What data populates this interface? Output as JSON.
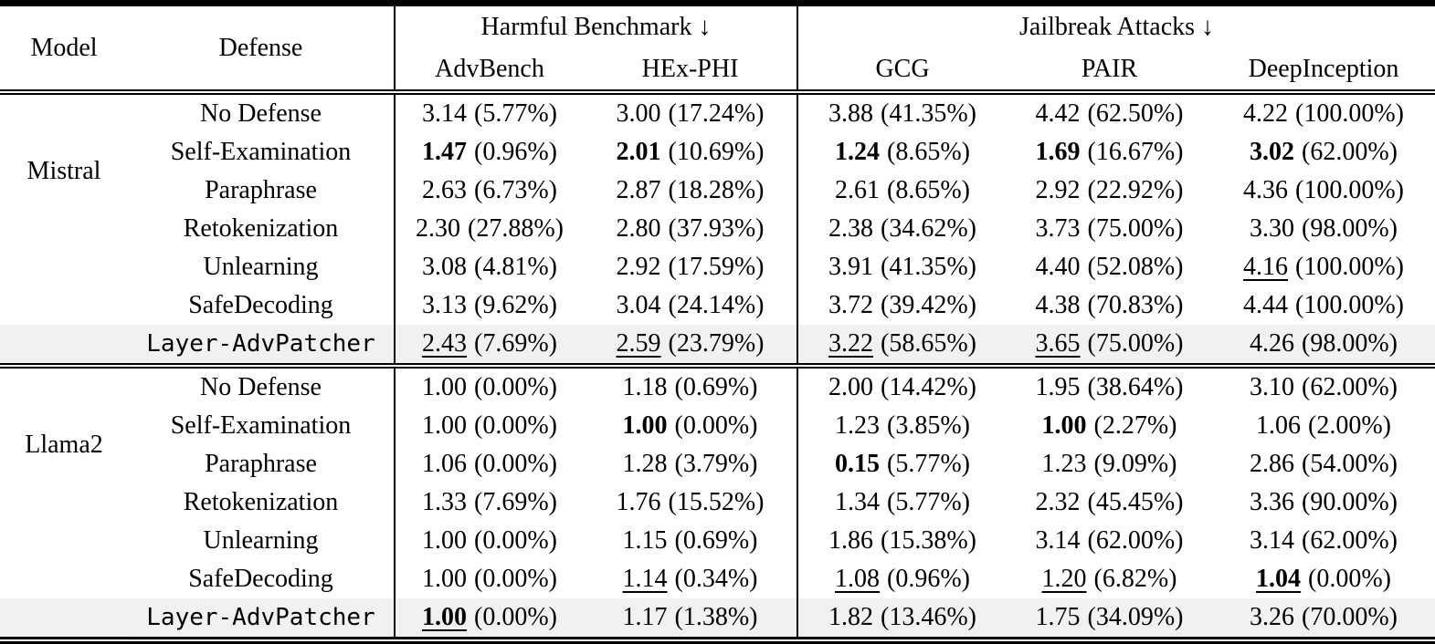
{
  "table": {
    "header": {
      "model": "Model",
      "defense": "Defense",
      "harmful_group": "Harmful Benchmark ↓",
      "jailbreak_group": "Jailbreak Attacks ↓",
      "subcolumns": [
        "AdvBench",
        "HEx-PHI",
        "GCG",
        "PAIR",
        "DeepInception"
      ]
    },
    "colors": {
      "highlight_row": "#f1f1f1",
      "rule": "#000000",
      "text": "#000000"
    },
    "groups": [
      {
        "model": "Mistral",
        "rows": [
          {
            "defense": "No Defense",
            "mono": false,
            "highlight": false,
            "cells": [
              {
                "score": "3.14",
                "pct": "(5.77%)",
                "em": ""
              },
              {
                "score": "3.00",
                "pct": "(17.24%)",
                "em": ""
              },
              {
                "score": "3.88",
                "pct": "(41.35%)",
                "em": ""
              },
              {
                "score": "4.42",
                "pct": "(62.50%)",
                "em": ""
              },
              {
                "score": "4.22",
                "pct": "(100.00%)",
                "em": ""
              }
            ]
          },
          {
            "defense": "Self-Examination",
            "mono": false,
            "highlight": false,
            "cells": [
              {
                "score": "1.47",
                "pct": "(0.96%)",
                "em": "b"
              },
              {
                "score": "2.01",
                "pct": "(10.69%)",
                "em": "b"
              },
              {
                "score": "1.24",
                "pct": "(8.65%)",
                "em": "b"
              },
              {
                "score": "1.69",
                "pct": "(16.67%)",
                "em": "b"
              },
              {
                "score": "3.02",
                "pct": "(62.00%)",
                "em": "b"
              }
            ]
          },
          {
            "defense": "Paraphrase",
            "mono": false,
            "highlight": false,
            "cells": [
              {
                "score": "2.63",
                "pct": "(6.73%)",
                "em": ""
              },
              {
                "score": "2.87",
                "pct": "(18.28%)",
                "em": ""
              },
              {
                "score": "2.61",
                "pct": "(8.65%)",
                "em": ""
              },
              {
                "score": "2.92",
                "pct": "(22.92%)",
                "em": ""
              },
              {
                "score": "4.36",
                "pct": "(100.00%)",
                "em": ""
              }
            ]
          },
          {
            "defense": "Retokenization",
            "mono": false,
            "highlight": false,
            "cells": [
              {
                "score": "2.30",
                "pct": "(27.88%)",
                "em": ""
              },
              {
                "score": "2.80",
                "pct": "(37.93%)",
                "em": ""
              },
              {
                "score": "2.38",
                "pct": "(34.62%)",
                "em": ""
              },
              {
                "score": "3.73",
                "pct": "(75.00%)",
                "em": ""
              },
              {
                "score": "3.30",
                "pct": "(98.00%)",
                "em": ""
              }
            ]
          },
          {
            "defense": "Unlearning",
            "mono": false,
            "highlight": false,
            "cells": [
              {
                "score": "3.08",
                "pct": "(4.81%)",
                "em": ""
              },
              {
                "score": "2.92",
                "pct": "(17.59%)",
                "em": ""
              },
              {
                "score": "3.91",
                "pct": "(41.35%)",
                "em": ""
              },
              {
                "score": "4.40",
                "pct": "(52.08%)",
                "em": ""
              },
              {
                "score": "4.16",
                "pct": "(100.00%)",
                "em": "u"
              }
            ]
          },
          {
            "defense": "SafeDecoding",
            "mono": false,
            "highlight": false,
            "cells": [
              {
                "score": "3.13",
                "pct": "(9.62%)",
                "em": ""
              },
              {
                "score": "3.04",
                "pct": "(24.14%)",
                "em": ""
              },
              {
                "score": "3.72",
                "pct": "(39.42%)",
                "em": ""
              },
              {
                "score": "4.38",
                "pct": "(70.83%)",
                "em": ""
              },
              {
                "score": "4.44",
                "pct": "(100.00%)",
                "em": ""
              }
            ]
          },
          {
            "defense": "Layer-AdvPatcher",
            "mono": true,
            "highlight": true,
            "cells": [
              {
                "score": "2.43",
                "pct": "(7.69%)",
                "em": "u"
              },
              {
                "score": "2.59",
                "pct": "(23.79%)",
                "em": "u"
              },
              {
                "score": "3.22",
                "pct": "(58.65%)",
                "em": "u"
              },
              {
                "score": "3.65",
                "pct": "(75.00%)",
                "em": "u"
              },
              {
                "score": "4.26",
                "pct": "(98.00%)",
                "em": ""
              }
            ]
          }
        ]
      },
      {
        "model": "Llama2",
        "rows": [
          {
            "defense": "No Defense",
            "mono": false,
            "highlight": false,
            "cells": [
              {
                "score": "1.00",
                "pct": "(0.00%)",
                "em": ""
              },
              {
                "score": "1.18",
                "pct": "(0.69%)",
                "em": ""
              },
              {
                "score": "2.00",
                "pct": "(14.42%)",
                "em": ""
              },
              {
                "score": "1.95",
                "pct": "(38.64%)",
                "em": ""
              },
              {
                "score": "3.10",
                "pct": "(62.00%)",
                "em": ""
              }
            ]
          },
          {
            "defense": "Self-Examination",
            "mono": false,
            "highlight": false,
            "cells": [
              {
                "score": "1.00",
                "pct": "(0.00%)",
                "em": ""
              },
              {
                "score": "1.00",
                "pct": "(0.00%)",
                "em": "b"
              },
              {
                "score": "1.23",
                "pct": "(3.85%)",
                "em": ""
              },
              {
                "score": "1.00",
                "pct": "(2.27%)",
                "em": "b"
              },
              {
                "score": "1.06",
                "pct": "(2.00%)",
                "em": ""
              }
            ]
          },
          {
            "defense": "Paraphrase",
            "mono": false,
            "highlight": false,
            "cells": [
              {
                "score": "1.06",
                "pct": "(0.00%)",
                "em": ""
              },
              {
                "score": "1.28",
                "pct": "(3.79%)",
                "em": ""
              },
              {
                "score": "0.15",
                "pct": "(5.77%)",
                "em": "b"
              },
              {
                "score": "1.23",
                "pct": "(9.09%)",
                "em": ""
              },
              {
                "score": "2.86",
                "pct": "(54.00%)",
                "em": ""
              }
            ]
          },
          {
            "defense": "Retokenization",
            "mono": false,
            "highlight": false,
            "cells": [
              {
                "score": "1.33",
                "pct": "(7.69%)",
                "em": ""
              },
              {
                "score": "1.76",
                "pct": "(15.52%)",
                "em": ""
              },
              {
                "score": "1.34",
                "pct": "(5.77%)",
                "em": ""
              },
              {
                "score": "2.32",
                "pct": "(45.45%)",
                "em": ""
              },
              {
                "score": "3.36",
                "pct": "(90.00%)",
                "em": ""
              }
            ]
          },
          {
            "defense": "Unlearning",
            "mono": false,
            "highlight": false,
            "cells": [
              {
                "score": "1.00",
                "pct": "(0.00%)",
                "em": ""
              },
              {
                "score": "1.15",
                "pct": "(0.69%)",
                "em": ""
              },
              {
                "score": "1.86",
                "pct": "(15.38%)",
                "em": ""
              },
              {
                "score": "3.14",
                "pct": "(62.00%)",
                "em": ""
              },
              {
                "score": "3.14",
                "pct": "(62.00%)",
                "em": ""
              }
            ]
          },
          {
            "defense": "SafeDecoding",
            "mono": false,
            "highlight": false,
            "cells": [
              {
                "score": "1.00",
                "pct": "(0.00%)",
                "em": ""
              },
              {
                "score": "1.14",
                "pct": "(0.34%)",
                "em": "u"
              },
              {
                "score": "1.08",
                "pct": "(0.96%)",
                "em": "u"
              },
              {
                "score": "1.20",
                "pct": "(6.82%)",
                "em": "u"
              },
              {
                "score": "1.04",
                "pct": "(0.00%)",
                "em": "bu"
              }
            ]
          },
          {
            "defense": "Layer-AdvPatcher",
            "mono": true,
            "highlight": true,
            "cells": [
              {
                "score": "1.00",
                "pct": "(0.00%)",
                "em": "bu"
              },
              {
                "score": "1.17",
                "pct": "(1.38%)",
                "em": ""
              },
              {
                "score": "1.82",
                "pct": "(13.46%)",
                "em": ""
              },
              {
                "score": "1.75",
                "pct": "(34.09%)",
                "em": ""
              },
              {
                "score": "3.26",
                "pct": "(70.00%)",
                "em": ""
              }
            ]
          }
        ]
      }
    ]
  }
}
